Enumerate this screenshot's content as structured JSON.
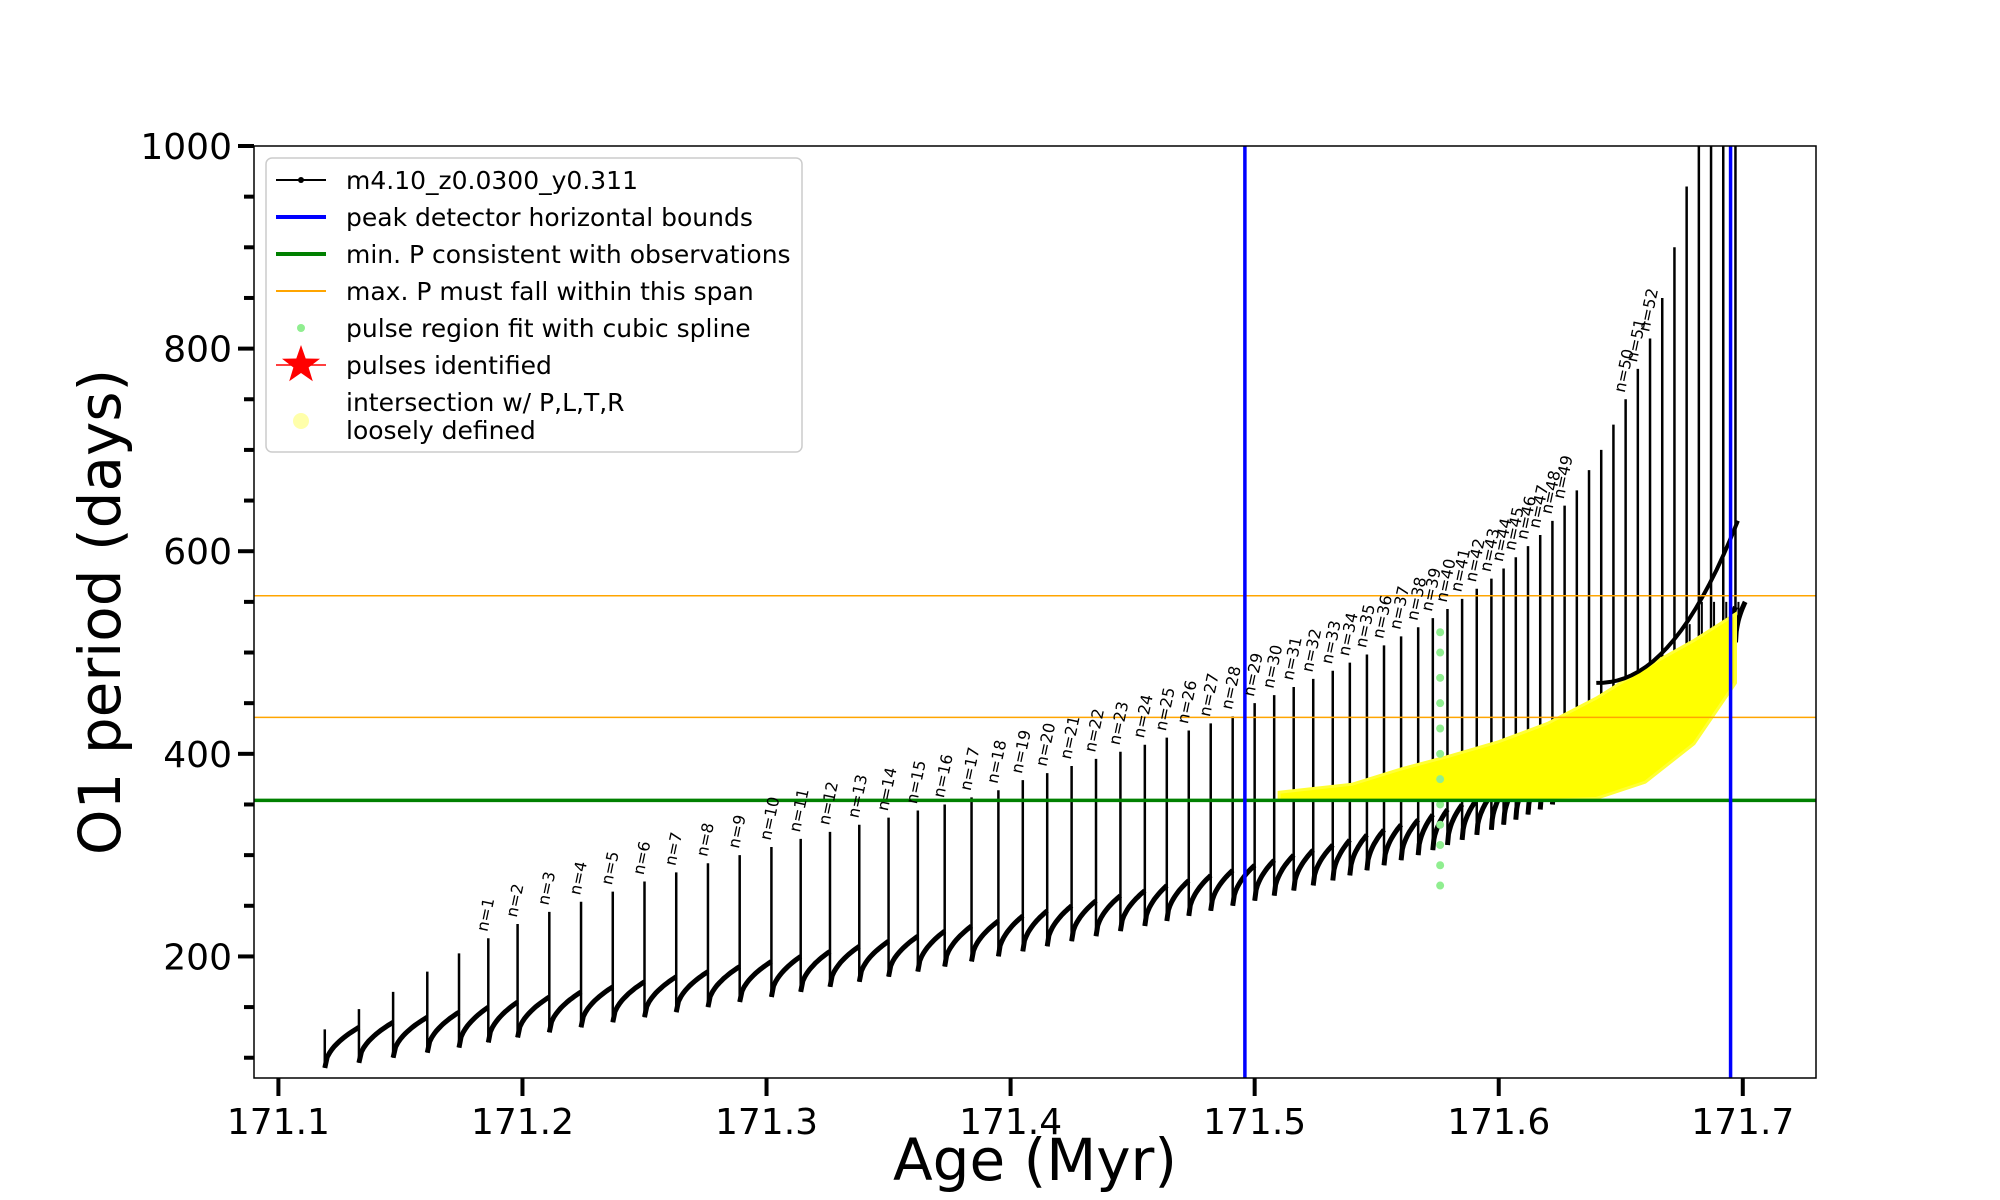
{
  "chart_data": {
    "type": "line",
    "xlabel": "Age (Myr)",
    "ylabel": "O1 period (days)",
    "xlim": [
      171.09,
      171.73
    ],
    "ylim": [
      80,
      1000
    ],
    "x_ticks": [
      171.1,
      171.2,
      171.3,
      171.4,
      171.5,
      171.6,
      171.7
    ],
    "x_tick_labels": [
      "171.1",
      "171.2",
      "171.3",
      "171.4",
      "171.5",
      "171.6",
      "171.7"
    ],
    "y_ticks": [
      200,
      400,
      600,
      800,
      1000
    ],
    "y_tick_labels": [
      "200",
      "400",
      "600",
      "800",
      "1000"
    ],
    "y_minor_step": 50,
    "grid": false,
    "legend_position": "top-left",
    "legend": [
      {
        "label": "m4.10_z0.0300_y0.311",
        "color": "#000000",
        "kind": "line-marker"
      },
      {
        "label": "peak detector horizontal bounds",
        "color": "#0000ff",
        "kind": "line"
      },
      {
        "label": "min. P consistent with observations",
        "color": "#008000",
        "kind": "line"
      },
      {
        "label": "max. P must fall within this span",
        "color": "#ffa500",
        "kind": "thin-line"
      },
      {
        "label": "pulse region fit with cubic spline",
        "color": "#90ee90",
        "kind": "dot"
      },
      {
        "label": "pulses identified",
        "color": "#ff0000",
        "kind": "star"
      },
      {
        "label": "intersection w/ P,L,T,R",
        "label2": "loosely defined",
        "color": "#ffffaa",
        "kind": "dot"
      }
    ],
    "vertical_lines": [
      {
        "x": 171.496,
        "color": "#0000ff"
      },
      {
        "x": 171.695,
        "color": "#0000ff"
      }
    ],
    "horizontal_lines": [
      {
        "y": 354,
        "color": "#008000",
        "style": "thick"
      },
      {
        "y": 436,
        "color": "#ffa500",
        "style": "thin"
      },
      {
        "y": 556,
        "color": "#ffa500",
        "style": "thin"
      }
    ],
    "series": [
      {
        "name": "m4.10_z0.0300_y0.311",
        "color": "#000000",
        "pulses": [
          {
            "n": "",
            "x_start": 171.119,
            "y_base": 90,
            "y_peak": 128
          },
          {
            "n": "",
            "x_start": 171.133,
            "y_base": 95,
            "y_peak": 148
          },
          {
            "n": "",
            "x_start": 171.147,
            "y_base": 100,
            "y_peak": 165
          },
          {
            "n": "",
            "x_start": 171.161,
            "y_base": 105,
            "y_peak": 185
          },
          {
            "n": "",
            "x_start": 171.174,
            "y_base": 110,
            "y_peak": 203
          },
          {
            "n": "n=1",
            "x_start": 171.186,
            "y_base": 115,
            "y_peak": 218
          },
          {
            "n": "n=2",
            "x_start": 171.198,
            "y_base": 120,
            "y_peak": 232
          },
          {
            "n": "n=3",
            "x_start": 171.211,
            "y_base": 125,
            "y_peak": 244
          },
          {
            "n": "n=4",
            "x_start": 171.224,
            "y_base": 130,
            "y_peak": 254
          },
          {
            "n": "n=5",
            "x_start": 171.237,
            "y_base": 135,
            "y_peak": 264
          },
          {
            "n": "n=6",
            "x_start": 171.25,
            "y_base": 140,
            "y_peak": 274
          },
          {
            "n": "n=7",
            "x_start": 171.263,
            "y_base": 145,
            "y_peak": 283
          },
          {
            "n": "n=8",
            "x_start": 171.276,
            "y_base": 150,
            "y_peak": 292
          },
          {
            "n": "n=9",
            "x_start": 171.289,
            "y_base": 155,
            "y_peak": 300
          },
          {
            "n": "n=10",
            "x_start": 171.302,
            "y_base": 160,
            "y_peak": 308
          },
          {
            "n": "n=11",
            "x_start": 171.314,
            "y_base": 165,
            "y_peak": 316
          },
          {
            "n": "n=12",
            "x_start": 171.326,
            "y_base": 170,
            "y_peak": 323
          },
          {
            "n": "n=13",
            "x_start": 171.338,
            "y_base": 175,
            "y_peak": 330
          },
          {
            "n": "n=14",
            "x_start": 171.35,
            "y_base": 180,
            "y_peak": 337
          },
          {
            "n": "n=15",
            "x_start": 171.362,
            "y_base": 185,
            "y_peak": 344
          },
          {
            "n": "n=16",
            "x_start": 171.373,
            "y_base": 190,
            "y_peak": 350
          },
          {
            "n": "n=17",
            "x_start": 171.384,
            "y_base": 195,
            "y_peak": 357
          },
          {
            "n": "n=18",
            "x_start": 171.395,
            "y_base": 200,
            "y_peak": 364
          },
          {
            "n": "n=19",
            "x_start": 171.405,
            "y_base": 205,
            "y_peak": 374
          },
          {
            "n": "n=20",
            "x_start": 171.415,
            "y_base": 210,
            "y_peak": 381
          },
          {
            "n": "n=21",
            "x_start": 171.425,
            "y_base": 215,
            "y_peak": 388
          },
          {
            "n": "n=22",
            "x_start": 171.435,
            "y_base": 220,
            "y_peak": 395
          },
          {
            "n": "n=23",
            "x_start": 171.445,
            "y_base": 225,
            "y_peak": 402
          },
          {
            "n": "n=24",
            "x_start": 171.455,
            "y_base": 230,
            "y_peak": 409
          },
          {
            "n": "n=25",
            "x_start": 171.464,
            "y_base": 235,
            "y_peak": 416
          },
          {
            "n": "n=26",
            "x_start": 171.473,
            "y_base": 240,
            "y_peak": 423
          },
          {
            "n": "n=27",
            "x_start": 171.482,
            "y_base": 245,
            "y_peak": 430
          },
          {
            "n": "n=28",
            "x_start": 171.491,
            "y_base": 250,
            "y_peak": 437
          },
          {
            "n": "n=29",
            "x_start": 171.5,
            "y_base": 255,
            "y_peak": 450
          },
          {
            "n": "n=30",
            "x_start": 171.508,
            "y_base": 260,
            "y_peak": 458
          },
          {
            "n": "n=31",
            "x_start": 171.516,
            "y_base": 265,
            "y_peak": 466
          },
          {
            "n": "n=32",
            "x_start": 171.524,
            "y_base": 270,
            "y_peak": 474
          },
          {
            "n": "n=33",
            "x_start": 171.532,
            "y_base": 275,
            "y_peak": 482
          },
          {
            "n": "n=34",
            "x_start": 171.539,
            "y_base": 280,
            "y_peak": 490
          },
          {
            "n": "n=35",
            "x_start": 171.546,
            "y_base": 285,
            "y_peak": 498
          },
          {
            "n": "n=36",
            "x_start": 171.553,
            "y_base": 290,
            "y_peak": 507
          },
          {
            "n": "n=37",
            "x_start": 171.56,
            "y_base": 295,
            "y_peak": 516
          },
          {
            "n": "n=38",
            "x_start": 171.567,
            "y_base": 300,
            "y_peak": 525
          },
          {
            "n": "n=39",
            "x_start": 171.573,
            "y_base": 305,
            "y_peak": 534
          },
          {
            "n": "n=40",
            "x_start": 171.579,
            "y_base": 310,
            "y_peak": 543
          },
          {
            "n": "n=41",
            "x_start": 171.585,
            "y_base": 315,
            "y_peak": 553
          },
          {
            "n": "n=42",
            "x_start": 171.591,
            "y_base": 320,
            "y_peak": 563
          },
          {
            "n": "n=43",
            "x_start": 171.597,
            "y_base": 325,
            "y_peak": 573
          },
          {
            "n": "n=44",
            "x_start": 171.602,
            "y_base": 330,
            "y_peak": 583
          },
          {
            "n": "n=45",
            "x_start": 171.607,
            "y_base": 335,
            "y_peak": 594
          },
          {
            "n": "n=46",
            "x_start": 171.612,
            "y_base": 340,
            "y_peak": 605
          },
          {
            "n": "n=47",
            "x_start": 171.617,
            "y_base": 345,
            "y_peak": 616
          },
          {
            "n": "n=48",
            "x_start": 171.622,
            "y_base": 350,
            "y_peak": 630
          },
          {
            "n": "n=49",
            "x_start": 171.627,
            "y_base": 355,
            "y_peak": 645
          },
          {
            "n": "",
            "x_start": 171.632,
            "y_base": 365,
            "y_peak": 660
          },
          {
            "n": "",
            "x_start": 171.637,
            "y_base": 375,
            "y_peak": 680
          },
          {
            "n": "",
            "x_start": 171.642,
            "y_base": 385,
            "y_peak": 700
          },
          {
            "n": "",
            "x_start": 171.647,
            "y_base": 395,
            "y_peak": 725
          },
          {
            "n": "n=50",
            "x_start": 171.652,
            "y_base": 405,
            "y_peak": 750
          },
          {
            "n": "n=51",
            "x_start": 171.657,
            "y_base": 415,
            "y_peak": 780
          },
          {
            "n": "n=52",
            "x_start": 171.662,
            "y_base": 425,
            "y_peak": 810
          },
          {
            "n": "",
            "x_start": 171.667,
            "y_base": 435,
            "y_peak": 850
          },
          {
            "n": "",
            "x_start": 171.672,
            "y_base": 445,
            "y_peak": 900
          },
          {
            "n": "",
            "x_start": 171.677,
            "y_base": 455,
            "y_peak": 960
          },
          {
            "n": "",
            "x_start": 171.682,
            "y_base": 465,
            "y_peak": 1000
          },
          {
            "n": "",
            "x_start": 171.687,
            "y_base": 475,
            "y_peak": 1000
          },
          {
            "n": "",
            "x_start": 171.692,
            "y_base": 490,
            "y_peak": 1000
          },
          {
            "n": "",
            "x_start": 171.697,
            "y_base": 510,
            "y_peak": 1000
          }
        ]
      },
      {
        "name": "pulse region fit with cubic spline",
        "color": "#90ee90",
        "points": [
          {
            "x": 171.576,
            "y": 270
          },
          {
            "x": 171.576,
            "y": 290
          },
          {
            "x": 171.576,
            "y": 310
          },
          {
            "x": 171.576,
            "y": 330
          },
          {
            "x": 171.576,
            "y": 350
          },
          {
            "x": 171.576,
            "y": 375
          },
          {
            "x": 171.576,
            "y": 400
          },
          {
            "x": 171.576,
            "y": 425
          },
          {
            "x": 171.576,
            "y": 450
          },
          {
            "x": 171.576,
            "y": 475
          },
          {
            "x": 171.576,
            "y": 500
          },
          {
            "x": 171.576,
            "y": 520
          }
        ]
      },
      {
        "name": "intersection w/ P,L,T,R loosely defined",
        "color": "#ffff00",
        "band": [
          {
            "x": 171.51,
            "y_low": 354,
            "y_high": 362
          },
          {
            "x": 171.54,
            "y_low": 354,
            "y_high": 370
          },
          {
            "x": 171.56,
            "y_low": 354,
            "y_high": 385
          },
          {
            "x": 171.58,
            "y_low": 354,
            "y_high": 398
          },
          {
            "x": 171.6,
            "y_low": 354,
            "y_high": 412
          },
          {
            "x": 171.62,
            "y_low": 354,
            "y_high": 430
          },
          {
            "x": 171.64,
            "y_low": 356,
            "y_high": 455
          },
          {
            "x": 171.66,
            "y_low": 372,
            "y_high": 485
          },
          {
            "x": 171.68,
            "y_low": 410,
            "y_high": 512
          },
          {
            "x": 171.697,
            "y_low": 470,
            "y_high": 538
          }
        ]
      }
    ]
  }
}
